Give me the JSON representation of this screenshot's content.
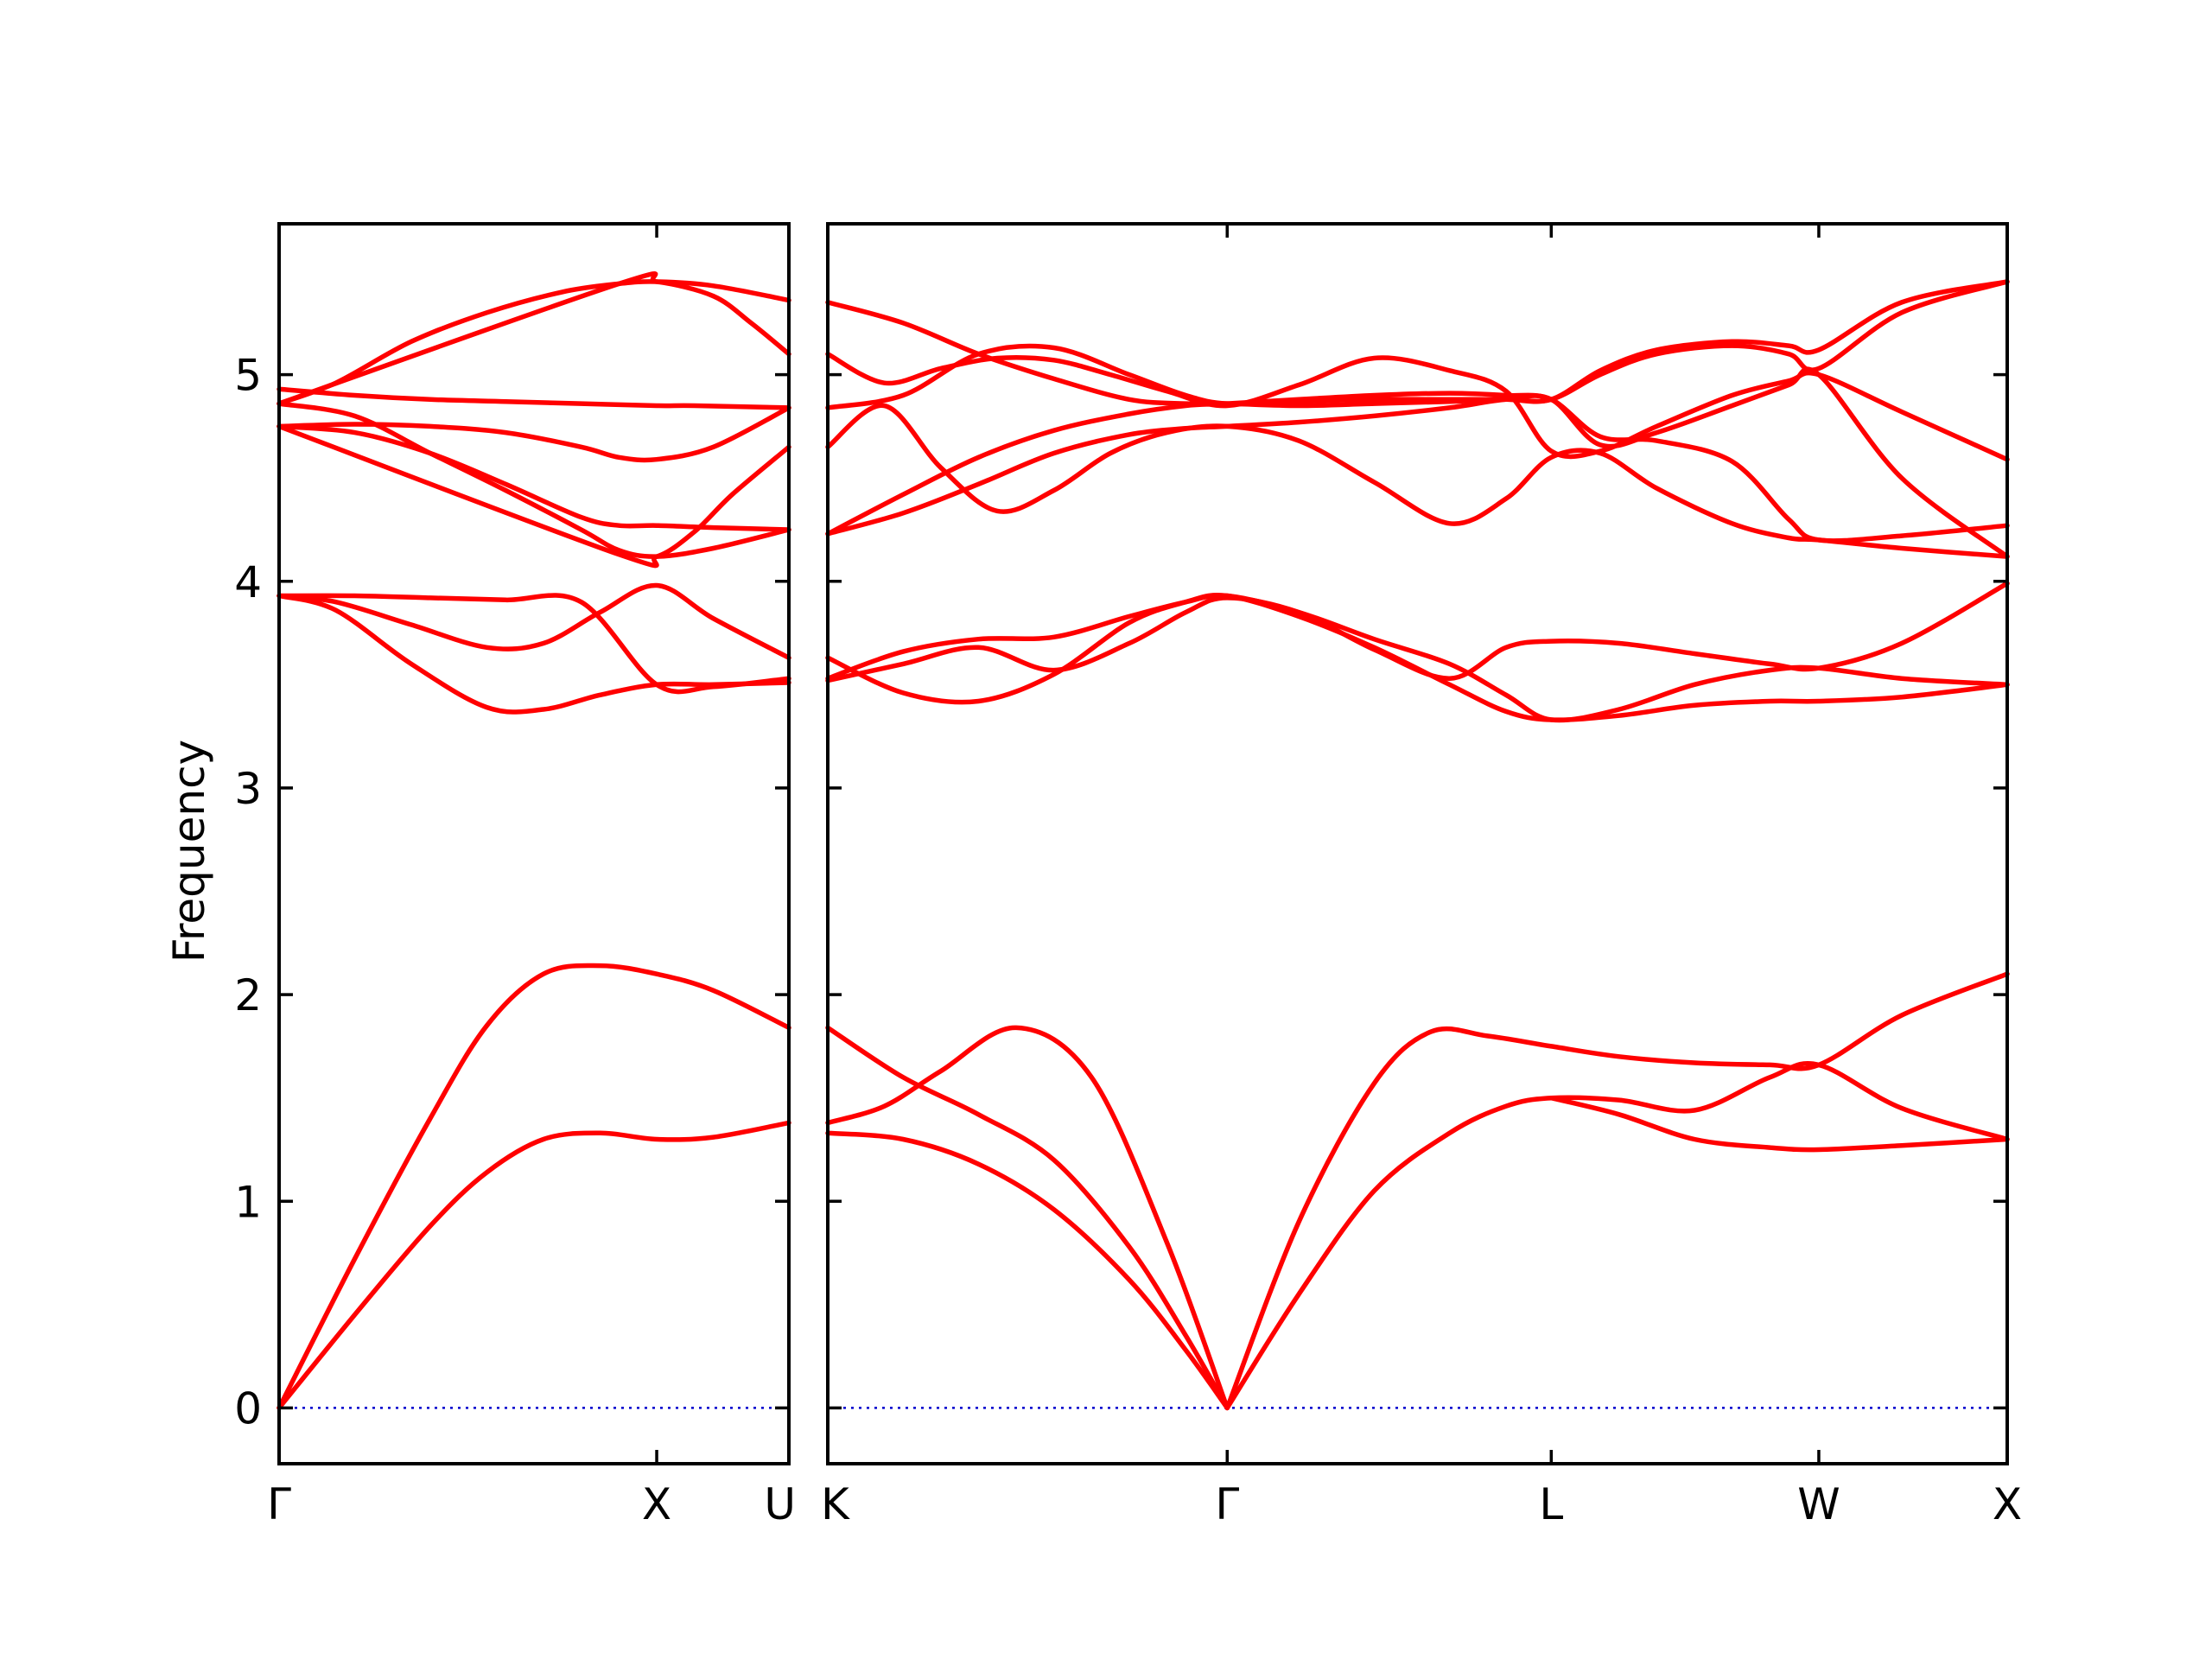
{
  "chart_data": {
    "type": "line",
    "title": "",
    "ylabel": "Frequency",
    "ylim": [
      -0.27,
      5.73
    ],
    "yticks": [
      "0",
      "1",
      "2",
      "3",
      "4",
      "5"
    ],
    "colors": {
      "bands": "#ff0000",
      "zero_line": "#0000cc",
      "axes": "#000000"
    },
    "zero_line": true,
    "panels": [
      {
        "name": "gamma-x-u",
        "xlim": [
          0,
          1.35
        ],
        "xtick_positions": [
          0,
          1,
          1.35
        ],
        "xtick_labels": [
          "Γ",
          "X",
          "U"
        ],
        "series": [
          {
            "x": [
              0,
              0.2,
              0.4,
              0.55,
              0.7,
              0.85,
              1.0,
              1.15,
              1.35
            ],
            "y": [
              0,
              0.72,
              1.4,
              1.85,
              2.1,
              2.14,
              2.1,
              2.02,
              1.84
            ]
          },
          {
            "x": [
              0,
              0.2,
              0.4,
              0.55,
              0.7,
              0.85,
              1.0,
              1.15,
              1.35
            ],
            "y": [
              0,
              0.45,
              0.88,
              1.14,
              1.3,
              1.33,
              1.3,
              1.31,
              1.38
            ]
          },
          {
            "x": [
              0,
              0.15,
              0.35,
              0.55,
              0.7,
              0.85,
              1.0,
              1.15,
              1.35
            ],
            "y": [
              3.93,
              3.9,
              3.79,
              3.68,
              3.7,
              3.85,
              3.98,
              3.82,
              3.63
            ]
          },
          {
            "x": [
              0,
              0.15,
              0.35,
              0.55,
              0.7,
              0.85,
              1.0,
              1.15,
              1.35
            ],
            "y": [
              3.93,
              3.86,
              3.6,
              3.39,
              3.38,
              3.45,
              3.5,
              3.5,
              3.51
            ]
          },
          {
            "x": [
              0,
              0.2,
              0.4,
              0.6,
              0.8,
              1.0,
              1.1,
              1.35
            ],
            "y": [
              4.93,
              4.9,
              4.88,
              4.87,
              4.86,
              4.85,
              4.85,
              4.84
            ]
          },
          {
            "x": [
              0,
              0.2,
              0.4,
              0.6,
              0.8,
              1.0,
              1.15,
              1.35
            ],
            "y": [
              3.93,
              3.93,
              3.92,
              3.91,
              3.9,
              3.5,
              3.49,
              3.53
            ]
          },
          {
            "x": [
              0,
              0.15,
              0.35,
              0.55,
              0.75,
              0.9,
              1.0,
              1.15,
              1.35
            ],
            "y": [
              4.86,
              4.96,
              5.16,
              5.3,
              5.4,
              5.44,
              5.45,
              5.43,
              5.36
            ]
          },
          {
            "x": [
              0,
              0.2,
              0.4,
              0.6,
              0.8,
              0.9,
              1.0,
              1.15,
              1.35
            ],
            "y": [
              4.75,
              4.76,
              4.75,
              4.72,
              4.65,
              4.6,
              4.59,
              4.65,
              4.84
            ]
          },
          {
            "x": [
              0,
              0.2,
              0.4,
              0.6,
              0.8,
              0.9,
              1.0,
              1.15,
              1.35
            ],
            "y": [
              4.75,
              4.72,
              4.62,
              4.47,
              4.31,
              4.27,
              4.27,
              4.26,
              4.25
            ]
          },
          {
            "x": [
              0,
              0.2,
              0.4,
              0.6,
              0.8,
              0.9,
              1.0,
              1.15,
              1.35
            ],
            "y": [
              4.86,
              4.8,
              4.62,
              4.44,
              4.25,
              4.15,
              4.12,
              4.16,
              4.25
            ]
          },
          {
            "x": [
              0,
              0.9,
              1.0,
              1.1,
              1.2,
              1.35
            ],
            "y": [
              4.75,
              4.13,
              4.12,
              4.24,
              4.42,
              4.65
            ]
          },
          {
            "x": [
              0,
              0.9,
              1.0,
              1.15,
              1.25,
              1.35
            ],
            "y": [
              4.86,
              5.44,
              5.45,
              5.38,
              5.25,
              5.1
            ]
          }
        ]
      },
      {
        "name": "k-gamma-l-w-x",
        "xlim": [
          1.35,
          4.48
        ],
        "xtick_positions": [
          1.35,
          2.41,
          3.27,
          3.98,
          4.48
        ],
        "xtick_labels": [
          "K",
          "Γ",
          "L",
          "W",
          "X"
        ],
        "series": [
          {
            "x": [
              1.35,
              1.5,
              1.65,
              1.85,
              2.05,
              2.25,
              2.41
            ],
            "y": [
              1.38,
              1.46,
              1.63,
              1.84,
              1.6,
              0.8,
              0
            ]
          },
          {
            "x": [
              1.35,
              1.55,
              1.75,
              1.95,
              2.15,
              2.3,
              2.41
            ],
            "y": [
              1.84,
              1.6,
              1.42,
              1.2,
              0.78,
              0.35,
              0
            ]
          },
          {
            "x": [
              1.35,
              1.55,
              1.75,
              1.95,
              2.15,
              2.3,
              2.41
            ],
            "y": [
              1.33,
              1.3,
              1.18,
              0.96,
              0.62,
              0.28,
              0
            ]
          },
          {
            "x": [
              2.41,
              2.6,
              2.8,
              2.95,
              3.1,
              3.27,
              3.45,
              3.65,
              3.85,
              3.98,
              4.2,
              4.48
            ],
            "y": [
              0,
              0.9,
              1.57,
              1.82,
              1.8,
              1.75,
              1.7,
              1.67,
              1.66,
              1.66,
              1.9,
              2.1
            ]
          },
          {
            "x": [
              2.41,
              2.6,
              2.8,
              3.0,
              3.15,
              3.27,
              3.45,
              3.65,
              3.85,
              3.98,
              4.2,
              4.48
            ],
            "y": [
              0,
              0.55,
              1.05,
              1.33,
              1.46,
              1.5,
              1.49,
              1.44,
              1.6,
              1.66,
              1.45,
              1.3
            ]
          },
          {
            "x": [
              3.27,
              3.45,
              3.65,
              3.85,
              3.98,
              4.2,
              4.48
            ],
            "y": [
              1.5,
              1.42,
              1.3,
              1.26,
              1.25,
              1.27,
              1.3
            ]
          },
          {
            "x": [
              1.35,
              1.55,
              1.75,
              1.95,
              2.15,
              2.3,
              2.41,
              2.6,
              2.8,
              3.0,
              3.15,
              3.27,
              3.45,
              3.65,
              3.85,
              3.98,
              4.2,
              4.48
            ],
            "y": [
              3.52,
              3.6,
              3.68,
              3.57,
              3.7,
              3.85,
              3.92,
              3.85,
              3.67,
              3.53,
              3.68,
              3.71,
              3.7,
              3.65,
              3.6,
              3.58,
              3.7,
              3.99
            ]
          },
          {
            "x": [
              1.35,
              1.55,
              1.75,
              1.95,
              2.15,
              2.3,
              2.41,
              2.6,
              2.8,
              3.0,
              3.15,
              3.27,
              3.45,
              3.65,
              3.85,
              3.98,
              4.2,
              4.48
            ],
            "y": [
              3.63,
              3.46,
              3.42,
              3.55,
              3.8,
              3.9,
              3.93,
              3.83,
              3.68,
              3.5,
              3.37,
              3.33,
              3.35,
              3.4,
              3.42,
              3.42,
              3.44,
              3.5
            ]
          },
          {
            "x": [
              1.35,
              1.55,
              1.75,
              1.95,
              2.15,
              2.3,
              2.41,
              2.6,
              2.8,
              3.0,
              3.15,
              3.27,
              3.45,
              3.65,
              3.85,
              3.98,
              4.2,
              4.48
            ],
            "y": [
              3.53,
              3.66,
              3.72,
              3.73,
              3.83,
              3.9,
              3.93,
              3.85,
              3.72,
              3.6,
              3.45,
              3.33,
              3.38,
              3.5,
              3.57,
              3.58,
              3.53,
              3.5
            ]
          },
          {
            "x": [
              1.35,
              1.5,
              1.65,
              1.8,
              1.95,
              2.1,
              2.25,
              2.41,
              2.6,
              2.8,
              3.0,
              3.15,
              3.27,
              3.4,
              3.55,
              3.75,
              3.9,
              3.98,
              4.2,
              4.48
            ],
            "y": [
              4.65,
              4.85,
              4.55,
              4.34,
              4.44,
              4.62,
              4.72,
              4.75,
              4.68,
              4.48,
              4.28,
              4.4,
              4.6,
              4.62,
              4.45,
              4.28,
              4.21,
              4.2,
              4.16,
              4.12
            ]
          },
          {
            "x": [
              1.35,
              1.55,
              1.75,
              1.95,
              2.15,
              2.3,
              2.41,
              2.6,
              2.8,
              3.0,
              3.15,
              3.27,
              3.4,
              3.55,
              3.75,
              3.9,
              3.98,
              4.2,
              4.48
            ],
            "y": [
              4.23,
              4.33,
              4.47,
              4.62,
              4.71,
              4.74,
              4.75,
              4.77,
              4.8,
              4.84,
              4.88,
              4.88,
              4.66,
              4.72,
              4.85,
              4.95,
              5.0,
              4.5,
              4.12
            ]
          },
          {
            "x": [
              1.35,
              1.55,
              1.75,
              1.95,
              2.15,
              2.3,
              2.41,
              2.6,
              2.8,
              3.0,
              3.15,
              3.27,
              3.4,
              3.55,
              3.75,
              3.9,
              3.98,
              4.2,
              4.48
            ],
            "y": [
              4.23,
              4.42,
              4.6,
              4.73,
              4.81,
              4.85,
              4.86,
              4.88,
              4.9,
              4.91,
              4.9,
              4.88,
              4.7,
              4.68,
              4.58,
              4.3,
              4.2,
              4.22,
              4.27
            ]
          },
          {
            "x": [
              1.35,
              1.5,
              1.65,
              1.8,
              1.95,
              2.1,
              2.25,
              2.41,
              2.6,
              2.8,
              3.0,
              3.15,
              3.27,
              3.4,
              3.55,
              3.75,
              3.9,
              3.98,
              4.2,
              4.48
            ],
            "y": [
              5.1,
              4.96,
              5.03,
              5.08,
              5.07,
              5.0,
              4.92,
              4.85,
              4.95,
              5.08,
              5.02,
              4.92,
              4.63,
              4.63,
              4.75,
              4.9,
              4.97,
              5.0,
              4.82,
              4.59
            ]
          },
          {
            "x": [
              1.35,
              1.55,
              1.75,
              1.95,
              2.15,
              2.3,
              2.41,
              2.6,
              2.8,
              3.0,
              3.15,
              3.27,
              3.4,
              3.55,
              3.75,
              3.9,
              3.98,
              4.2,
              4.48
            ],
            "y": [
              5.35,
              5.25,
              5.1,
              4.98,
              4.88,
              4.86,
              4.86,
              4.85,
              4.86,
              4.87,
              4.88,
              4.88,
              5.0,
              5.1,
              5.14,
              5.1,
              5.03,
              5.3,
              5.45
            ]
          },
          {
            "x": [
              1.35,
              1.55,
              1.75,
              1.95,
              2.15,
              2.3,
              2.41,
              2.6,
              2.8,
              3.0,
              3.15,
              3.27,
              3.4,
              3.55,
              3.75,
              3.9,
              3.98,
              4.2,
              4.48
            ],
            "y": [
              4.84,
              4.9,
              5.1,
              5.13,
              5.0,
              4.9,
              4.86,
              4.87,
              4.88,
              4.88,
              4.88,
              4.88,
              5.02,
              5.12,
              5.16,
              5.14,
              5.12,
              5.35,
              5.45
            ]
          }
        ]
      }
    ]
  }
}
